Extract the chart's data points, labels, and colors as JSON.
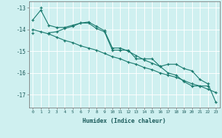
{
  "xlabel": "Humidex (Indice chaleur)",
  "bg_color": "#cff0f0",
  "grid_color": "#ffffff",
  "line_color": "#1a7a6e",
  "xlim": [
    -0.5,
    23.5
  ],
  "ylim": [
    -17.6,
    -12.7
  ],
  "yticks": [
    -17,
    -16,
    -15,
    -14,
    -13
  ],
  "xticks": [
    0,
    1,
    2,
    3,
    4,
    5,
    6,
    7,
    8,
    9,
    10,
    11,
    12,
    13,
    14,
    15,
    16,
    17,
    18,
    19,
    20,
    21,
    22,
    23
  ],
  "series": [
    [
      null,
      -13.0,
      null,
      null,
      null,
      null,
      null,
      null,
      null,
      null,
      null,
      null,
      null,
      null,
      null,
      null,
      null,
      null,
      null,
      null,
      null,
      null,
      null,
      null
    ],
    [
      -13.55,
      -13.1,
      -13.8,
      -13.9,
      -13.9,
      -13.8,
      -13.7,
      -13.7,
      -13.95,
      -14.1,
      -14.95,
      -14.95,
      -14.95,
      -15.35,
      -15.35,
      -15.35,
      -15.7,
      -15.6,
      -15.6,
      -15.8,
      -15.9,
      -16.3,
      -16.5,
      -17.35
    ],
    [
      null,
      null,
      -14.15,
      -14.1,
      -13.95,
      -13.85,
      -13.7,
      -13.65,
      -13.85,
      -14.05,
      -14.85,
      -14.85,
      -15.0,
      -15.2,
      -15.4,
      -15.55,
      -15.7,
      -16.0,
      -16.1,
      -16.4,
      -16.6,
      -16.6,
      -16.6,
      null
    ],
    [
      -14.15,
      null,
      null,
      null,
      null,
      null,
      null,
      null,
      null,
      null,
      null,
      null,
      null,
      null,
      null,
      null,
      null,
      null,
      null,
      null,
      null,
      null,
      null,
      null
    ],
    [
      -14.0,
      -14.1,
      -14.2,
      -14.35,
      -14.5,
      -14.6,
      -14.75,
      -14.85,
      -14.95,
      -15.1,
      -15.25,
      -15.35,
      -15.5,
      -15.6,
      -15.75,
      -15.85,
      -16.0,
      -16.1,
      -16.2,
      -16.35,
      -16.5,
      -16.6,
      -16.75,
      -16.9
    ]
  ]
}
